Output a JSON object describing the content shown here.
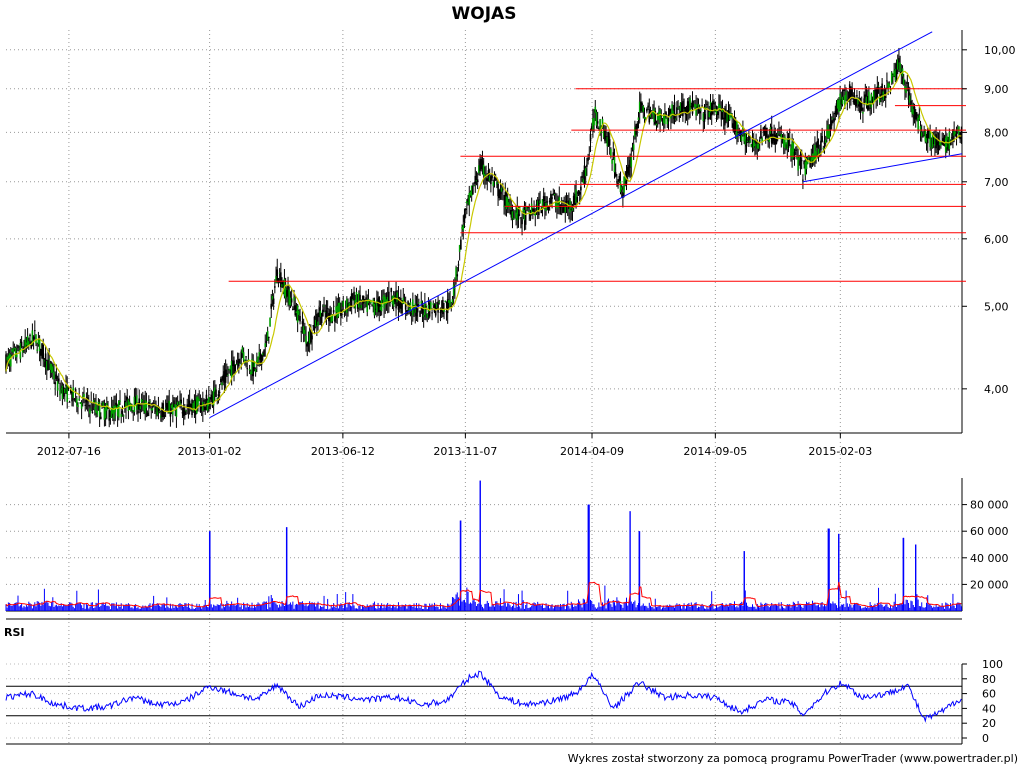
{
  "chart_data": [
    {
      "type": "candlestick",
      "title": "WOJAS",
      "y_scale": "log",
      "ylim": [
        3.55,
        10.55
      ],
      "yticks": [
        "10,00",
        "9,00",
        "8,00",
        "7,00",
        "6,00",
        "5,00",
        "4,00"
      ],
      "ytick_values": [
        10,
        9,
        8,
        7,
        6,
        5,
        4
      ],
      "xticks": [
        "2012-07-16",
        "2013-01-02",
        "2013-06-12",
        "2013-11-07",
        "2014-04-09",
        "2014-09-05",
        "2015-02-03"
      ],
      "x_range": [
        "2012-05-01",
        "2015-06-30"
      ],
      "grid": "dotted",
      "colors": {
        "candle": "#000000",
        "moving_average": "#c8c800",
        "support_resistance": "#ff0000",
        "trendline": "#0000ff"
      },
      "close_path": [
        [
          "2012-05-01",
          4.3
        ],
        [
          "2012-05-20",
          4.45
        ],
        [
          "2012-06-05",
          4.6
        ],
        [
          "2012-06-20",
          4.3
        ],
        [
          "2012-07-05",
          4.0
        ],
        [
          "2012-07-25",
          3.9
        ],
        [
          "2012-08-15",
          3.8
        ],
        [
          "2012-09-05",
          3.75
        ],
        [
          "2012-10-01",
          3.85
        ],
        [
          "2012-10-20",
          3.8
        ],
        [
          "2012-11-10",
          3.78
        ],
        [
          "2012-12-15",
          3.82
        ],
        [
          "2013-01-02",
          3.85
        ],
        [
          "2013-01-20",
          4.1
        ],
        [
          "2013-02-10",
          4.4
        ],
        [
          "2013-02-25",
          4.2
        ],
        [
          "2013-03-12",
          4.5
        ],
        [
          "2013-03-25",
          5.5
        ],
        [
          "2013-04-05",
          5.2
        ],
        [
          "2013-04-15",
          5.0
        ],
        [
          "2013-04-30",
          4.55
        ],
        [
          "2013-05-15",
          4.9
        ],
        [
          "2013-06-01",
          4.9
        ],
        [
          "2013-06-12",
          4.95
        ],
        [
          "2013-06-25",
          5.1
        ],
        [
          "2013-07-10",
          5.0
        ],
        [
          "2013-07-25",
          5.0
        ],
        [
          "2013-08-10",
          5.15
        ],
        [
          "2013-08-25",
          5.0
        ],
        [
          "2013-09-15",
          4.95
        ],
        [
          "2013-10-05",
          5.0
        ],
        [
          "2013-10-20",
          5.0
        ],
        [
          "2013-10-28",
          5.5
        ],
        [
          "2013-11-05",
          6.3
        ],
        [
          "2013-11-25",
          7.3
        ],
        [
          "2013-12-10",
          7.0
        ],
        [
          "2014-01-01",
          6.5
        ],
        [
          "2014-01-15",
          6.35
        ],
        [
          "2014-02-01",
          6.5
        ],
        [
          "2014-02-20",
          6.7
        ],
        [
          "2014-03-05",
          6.5
        ],
        [
          "2014-03-15",
          6.6
        ],
        [
          "2014-03-25",
          6.8
        ],
        [
          "2014-04-05",
          7.5
        ],
        [
          "2014-04-12",
          8.4
        ],
        [
          "2014-04-25",
          8.0
        ],
        [
          "2014-05-05",
          7.4
        ],
        [
          "2014-05-15",
          6.8
        ],
        [
          "2014-05-25",
          7.3
        ],
        [
          "2014-06-05",
          8.5
        ],
        [
          "2014-06-20",
          8.4
        ],
        [
          "2014-07-05",
          8.3
        ],
        [
          "2014-07-20",
          8.5
        ],
        [
          "2014-08-05",
          8.6
        ],
        [
          "2014-08-20",
          8.4
        ],
        [
          "2014-09-05",
          8.55
        ],
        [
          "2014-09-20",
          8.3
        ],
        [
          "2014-10-05",
          8.0
        ],
        [
          "2014-10-20",
          7.7
        ],
        [
          "2014-11-05",
          8.0
        ],
        [
          "2014-11-20",
          7.9
        ],
        [
          "2014-12-05",
          7.7
        ],
        [
          "2014-12-20",
          7.2
        ],
        [
          "2015-01-05",
          7.6
        ],
        [
          "2015-01-20",
          8.0
        ],
        [
          "2015-02-03",
          8.7
        ],
        [
          "2015-02-15",
          8.9
        ],
        [
          "2015-03-01",
          8.6
        ],
        [
          "2015-03-15",
          8.8
        ],
        [
          "2015-04-01",
          9.0
        ],
        [
          "2015-04-15",
          9.6
        ],
        [
          "2015-04-25",
          9.0
        ],
        [
          "2015-05-05",
          8.3
        ],
        [
          "2015-05-20",
          7.9
        ],
        [
          "2015-06-05",
          7.7
        ],
        [
          "2015-06-20",
          7.9
        ],
        [
          "2015-06-30",
          8.0
        ]
      ],
      "horizontal_lines": [
        {
          "from": "2013-01-25",
          "y": 5.35
        },
        {
          "from": "2013-11-01",
          "y": 6.1
        },
        {
          "from": "2013-12-25",
          "y": 6.55
        },
        {
          "from": "2014-03-01",
          "y": 6.95
        },
        {
          "from": "2013-11-01",
          "y": 7.5
        },
        {
          "from": "2014-03-15",
          "y": 8.05
        },
        {
          "from": "2015-04-10",
          "y": 8.6
        },
        {
          "from": "2014-03-20",
          "y": 9.0
        }
      ],
      "trendlines": [
        {
          "from": [
            "2013-01-02",
            3.7
          ],
          "to": [
            "2015-05-25",
            10.5
          ]
        },
        {
          "from": [
            "2014-12-20",
            7.0
          ],
          "to": [
            "2015-06-30",
            7.55
          ]
        }
      ]
    },
    {
      "type": "bar",
      "series": "volume",
      "ylim": [
        0,
        100000
      ],
      "yticks": [
        "80 000",
        "60 000",
        "40 000",
        "20 000"
      ],
      "ytick_values": [
        80000,
        60000,
        40000,
        20000
      ],
      "colors": {
        "bars": "#0000ff",
        "moving_average": "#ff0000"
      },
      "spikes": [
        [
          "2013-01-02",
          60000
        ],
        [
          "2013-04-05",
          63000
        ],
        [
          "2013-11-01",
          68000
        ],
        [
          "2013-11-25",
          98000
        ],
        [
          "2014-04-05",
          80000
        ],
        [
          "2014-05-25",
          75000
        ],
        [
          "2014-06-05",
          60000
        ],
        [
          "2015-01-20",
          62000
        ],
        [
          "2015-02-01",
          58000
        ],
        [
          "2015-04-20",
          55000
        ],
        [
          "2015-05-05",
          50000
        ],
        [
          "2014-10-10",
          45000
        ]
      ],
      "baseline_volume": 4000
    },
    {
      "type": "line",
      "title": "RSI",
      "ylim": [
        0,
        100
      ],
      "yticks": [
        "100",
        "80",
        "60",
        "40",
        "20",
        "0"
      ],
      "ytick_values": [
        100,
        80,
        60,
        40,
        20,
        0
      ],
      "reference_lines": [
        70,
        30
      ],
      "colors": {
        "rsi": "#0000ff",
        "reference": "#000000"
      },
      "rsi_path": [
        [
          "2012-05-01",
          55
        ],
        [
          "2012-06-01",
          60
        ],
        [
          "2012-07-01",
          45
        ],
        [
          "2012-08-01",
          40
        ],
        [
          "2012-09-01",
          42
        ],
        [
          "2012-10-01",
          55
        ],
        [
          "2012-11-01",
          45
        ],
        [
          "2012-12-01",
          48
        ],
        [
          "2013-01-02",
          70
        ],
        [
          "2013-02-01",
          60
        ],
        [
          "2013-03-01",
          52
        ],
        [
          "2013-03-25",
          72
        ],
        [
          "2013-04-20",
          42
        ],
        [
          "2013-05-15",
          58
        ],
        [
          "2013-06-15",
          55
        ],
        [
          "2013-07-15",
          52
        ],
        [
          "2013-08-15",
          55
        ],
        [
          "2013-09-15",
          45
        ],
        [
          "2013-10-15",
          50
        ],
        [
          "2013-11-10",
          80
        ],
        [
          "2013-11-25",
          88
        ],
        [
          "2013-12-20",
          55
        ],
        [
          "2014-01-20",
          45
        ],
        [
          "2014-02-20",
          50
        ],
        [
          "2014-03-20",
          60
        ],
        [
          "2014-04-10",
          85
        ],
        [
          "2014-05-05",
          40
        ],
        [
          "2014-06-05",
          75
        ],
        [
          "2014-07-05",
          55
        ],
        [
          "2014-08-05",
          58
        ],
        [
          "2014-09-05",
          55
        ],
        [
          "2014-10-05",
          35
        ],
        [
          "2014-11-05",
          52
        ],
        [
          "2014-12-05",
          48
        ],
        [
          "2014-12-20",
          32
        ],
        [
          "2015-01-20",
          65
        ],
        [
          "2015-02-05",
          75
        ],
        [
          "2015-03-01",
          55
        ],
        [
          "2015-04-01",
          60
        ],
        [
          "2015-04-25",
          72
        ],
        [
          "2015-05-15",
          25
        ],
        [
          "2015-06-05",
          35
        ],
        [
          "2015-06-30",
          55
        ]
      ]
    }
  ],
  "footer": "Wykres został stworzony za pomocą programu PowerTrader (www.powertrader.pl)"
}
